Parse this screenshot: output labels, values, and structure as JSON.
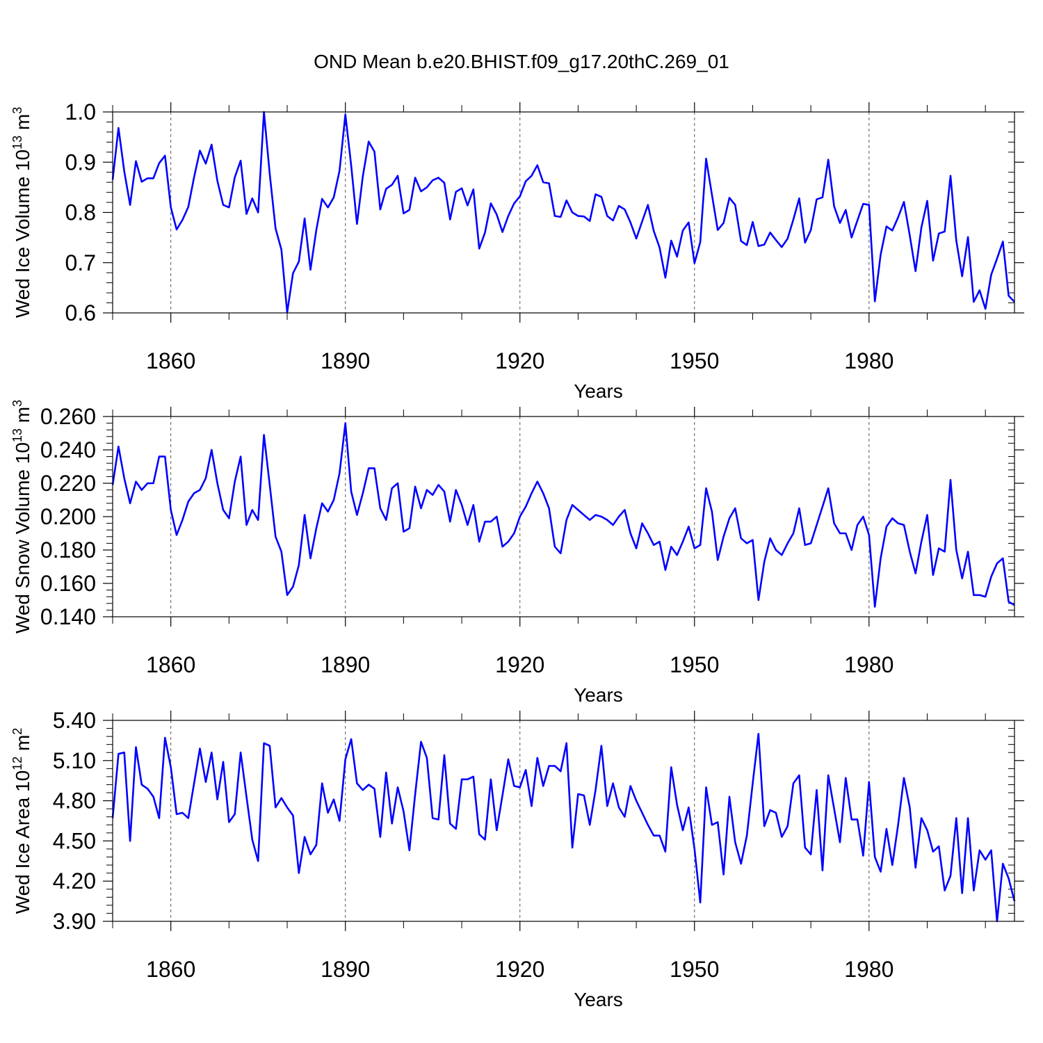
{
  "figure": {
    "title": "OND Mean b.e20.BHIST.f09_g17.20thC.269_01",
    "line_color": "#0000ff"
  },
  "chart_data": [
    {
      "type": "line",
      "title": "",
      "xlabel": "Years",
      "ylabel": "Wed Ice Volume 10¹³ m³",
      "ylabel_parts": {
        "base": "Wed Ice Volume 10",
        "exp1": "13",
        "mid": " m",
        "exp2": "3"
      },
      "xlim": [
        1850,
        2005
      ],
      "ylim": [
        0.6,
        1.0
      ],
      "xticks": [
        1860,
        1890,
        1920,
        1950,
        1980
      ],
      "yticks": [
        0.6,
        0.7,
        0.8,
        0.9,
        1.0
      ],
      "ytick_labels": [
        "0.6",
        "0.7",
        "0.8",
        "0.9",
        "1.0"
      ],
      "x_start": 1850,
      "series": [
        {
          "name": "Wed Ice Volume",
          "values": [
            0.865,
            0.968,
            0.882,
            0.815,
            0.902,
            0.861,
            0.868,
            0.868,
            0.898,
            0.913,
            0.81,
            0.766,
            0.785,
            0.811,
            0.87,
            0.923,
            0.897,
            0.935,
            0.863,
            0.815,
            0.81,
            0.87,
            0.903,
            0.797,
            0.828,
            0.8,
            1.0,
            0.877,
            0.768,
            0.726,
            0.601,
            0.679,
            0.702,
            0.788,
            0.686,
            0.765,
            0.827,
            0.81,
            0.83,
            0.883,
            0.995,
            0.893,
            0.777,
            0.872,
            0.941,
            0.921,
            0.806,
            0.847,
            0.855,
            0.873,
            0.798,
            0.805,
            0.869,
            0.842,
            0.85,
            0.864,
            0.869,
            0.859,
            0.786,
            0.841,
            0.848,
            0.814,
            0.846,
            0.728,
            0.76,
            0.818,
            0.796,
            0.761,
            0.793,
            0.818,
            0.832,
            0.862,
            0.873,
            0.894,
            0.86,
            0.858,
            0.793,
            0.791,
            0.824,
            0.8,
            0.793,
            0.792,
            0.783,
            0.836,
            0.831,
            0.793,
            0.784,
            0.813,
            0.806,
            0.78,
            0.748,
            0.782,
            0.815,
            0.763,
            0.73,
            0.67,
            0.744,
            0.712,
            0.764,
            0.78,
            0.699,
            0.741,
            0.907,
            0.835,
            0.765,
            0.779,
            0.829,
            0.815,
            0.743,
            0.735,
            0.781,
            0.733,
            0.736,
            0.76,
            0.745,
            0.731,
            0.748,
            0.786,
            0.828,
            0.74,
            0.765,
            0.826,
            0.83,
            0.905,
            0.812,
            0.779,
            0.805,
            0.75,
            0.784,
            0.817,
            0.815,
            0.623,
            0.716,
            0.772,
            0.764,
            0.79,
            0.821,
            0.754,
            0.683,
            0.77,
            0.823,
            0.704,
            0.758,
            0.762,
            0.873,
            0.744,
            0.673,
            0.751,
            0.622,
            0.645,
            0.608,
            0.676,
            0.708,
            0.742,
            0.634,
            0.622
          ]
        }
      ]
    },
    {
      "type": "line",
      "title": "",
      "xlabel": "Years",
      "ylabel": "Wed Snow Volume 10¹³ m³",
      "ylabel_parts": {
        "base": "Wed Snow Volume 10",
        "exp1": "13",
        "mid": " m",
        "exp2": "3"
      },
      "xlim": [
        1850,
        2005
      ],
      "ylim": [
        0.14,
        0.26
      ],
      "xticks": [
        1860,
        1890,
        1920,
        1950,
        1980
      ],
      "yticks": [
        0.14,
        0.16,
        0.18,
        0.2,
        0.22,
        0.24,
        0.26
      ],
      "ytick_labels": [
        "0.140",
        "0.160",
        "0.180",
        "0.200",
        "0.220",
        "0.240",
        "0.260"
      ],
      "x_start": 1850,
      "series": [
        {
          "name": "Wed Snow Volume",
          "values": [
            0.219,
            0.242,
            0.223,
            0.208,
            0.221,
            0.216,
            0.22,
            0.22,
            0.236,
            0.236,
            0.204,
            0.189,
            0.198,
            0.209,
            0.214,
            0.216,
            0.223,
            0.24,
            0.22,
            0.204,
            0.199,
            0.221,
            0.236,
            0.195,
            0.204,
            0.198,
            0.249,
            0.219,
            0.188,
            0.179,
            0.153,
            0.158,
            0.171,
            0.201,
            0.175,
            0.193,
            0.208,
            0.203,
            0.21,
            0.226,
            0.256,
            0.215,
            0.201,
            0.214,
            0.229,
            0.229,
            0.205,
            0.198,
            0.217,
            0.22,
            0.191,
            0.193,
            0.218,
            0.205,
            0.216,
            0.213,
            0.219,
            0.215,
            0.197,
            0.216,
            0.207,
            0.195,
            0.207,
            0.185,
            0.197,
            0.197,
            0.2,
            0.182,
            0.185,
            0.19,
            0.2,
            0.206,
            0.214,
            0.221,
            0.214,
            0.205,
            0.182,
            0.178,
            0.198,
            0.207,
            0.204,
            0.201,
            0.198,
            0.201,
            0.2,
            0.198,
            0.195,
            0.2,
            0.204,
            0.19,
            0.181,
            0.196,
            0.19,
            0.183,
            0.185,
            0.168,
            0.182,
            0.177,
            0.185,
            0.194,
            0.181,
            0.183,
            0.217,
            0.203,
            0.174,
            0.188,
            0.199,
            0.205,
            0.187,
            0.184,
            0.186,
            0.15,
            0.173,
            0.187,
            0.18,
            0.177,
            0.184,
            0.19,
            0.205,
            0.183,
            0.184,
            0.195,
            0.206,
            0.217,
            0.196,
            0.19,
            0.19,
            0.18,
            0.195,
            0.2,
            0.189,
            0.146,
            0.175,
            0.194,
            0.199,
            0.196,
            0.195,
            0.179,
            0.166,
            0.185,
            0.201,
            0.165,
            0.181,
            0.179,
            0.222,
            0.18,
            0.163,
            0.179,
            0.153,
            0.153,
            0.152,
            0.164,
            0.172,
            0.175,
            0.149,
            0.147
          ]
        }
      ]
    },
    {
      "type": "line",
      "title": "",
      "xlabel": "Years",
      "ylabel": "Wed Ice Area 10¹² m²",
      "ylabel_parts": {
        "base": "Wed Ice Area 10",
        "exp1": "12",
        "mid": " m",
        "exp2": "2"
      },
      "xlim": [
        1850,
        2005
      ],
      "ylim": [
        3.9,
        5.4
      ],
      "xticks": [
        1860,
        1890,
        1920,
        1950,
        1980
      ],
      "yticks": [
        3.9,
        4.2,
        4.5,
        4.8,
        5.1,
        5.4
      ],
      "ytick_labels": [
        "3.90",
        "4.20",
        "4.50",
        "4.80",
        "5.10",
        "5.40"
      ],
      "x_start": 1850,
      "series": [
        {
          "name": "Wed Ice Area",
          "values": [
            4.67,
            5.15,
            5.16,
            4.5,
            5.2,
            4.92,
            4.89,
            4.83,
            4.67,
            5.27,
            5.05,
            4.7,
            4.71,
            4.67,
            4.93,
            5.19,
            4.94,
            5.16,
            4.81,
            5.09,
            4.64,
            4.7,
            5.16,
            4.83,
            4.51,
            4.35,
            5.23,
            5.21,
            4.75,
            4.82,
            4.75,
            4.69,
            4.26,
            4.53,
            4.4,
            4.47,
            4.93,
            4.71,
            4.81,
            4.65,
            5.11,
            5.26,
            4.93,
            4.88,
            4.92,
            4.89,
            4.53,
            5.01,
            4.63,
            4.9,
            4.72,
            4.43,
            4.85,
            5.24,
            5.12,
            4.67,
            4.66,
            5.14,
            4.63,
            4.59,
            4.96,
            4.96,
            4.98,
            4.55,
            4.51,
            4.96,
            4.58,
            4.84,
            5.11,
            4.91,
            4.9,
            5.03,
            4.76,
            5.12,
            4.91,
            5.06,
            5.06,
            5.02,
            5.23,
            4.45,
            4.85,
            4.84,
            4.62,
            4.88,
            5.21,
            4.76,
            4.93,
            4.75,
            4.68,
            4.91,
            4.8,
            4.71,
            4.62,
            4.54,
            4.54,
            4.42,
            5.05,
            4.77,
            4.58,
            4.75,
            4.44,
            4.04,
            4.9,
            4.62,
            4.64,
            4.25,
            4.83,
            4.49,
            4.33,
            4.54,
            4.93,
            5.3,
            4.61,
            4.73,
            4.71,
            4.53,
            4.61,
            4.93,
            4.99,
            4.45,
            4.4,
            4.88,
            4.28,
            4.99,
            4.74,
            4.49,
            4.97,
            4.66,
            4.66,
            4.39,
            4.94,
            4.38,
            4.27,
            4.59,
            4.32,
            4.62,
            4.97,
            4.75,
            4.3,
            4.67,
            4.58,
            4.42,
            4.46,
            4.13,
            4.24,
            4.67,
            4.11,
            4.67,
            4.13,
            4.43,
            4.36,
            4.43,
            3.9,
            4.33,
            4.22,
            4.05
          ]
        }
      ]
    }
  ]
}
